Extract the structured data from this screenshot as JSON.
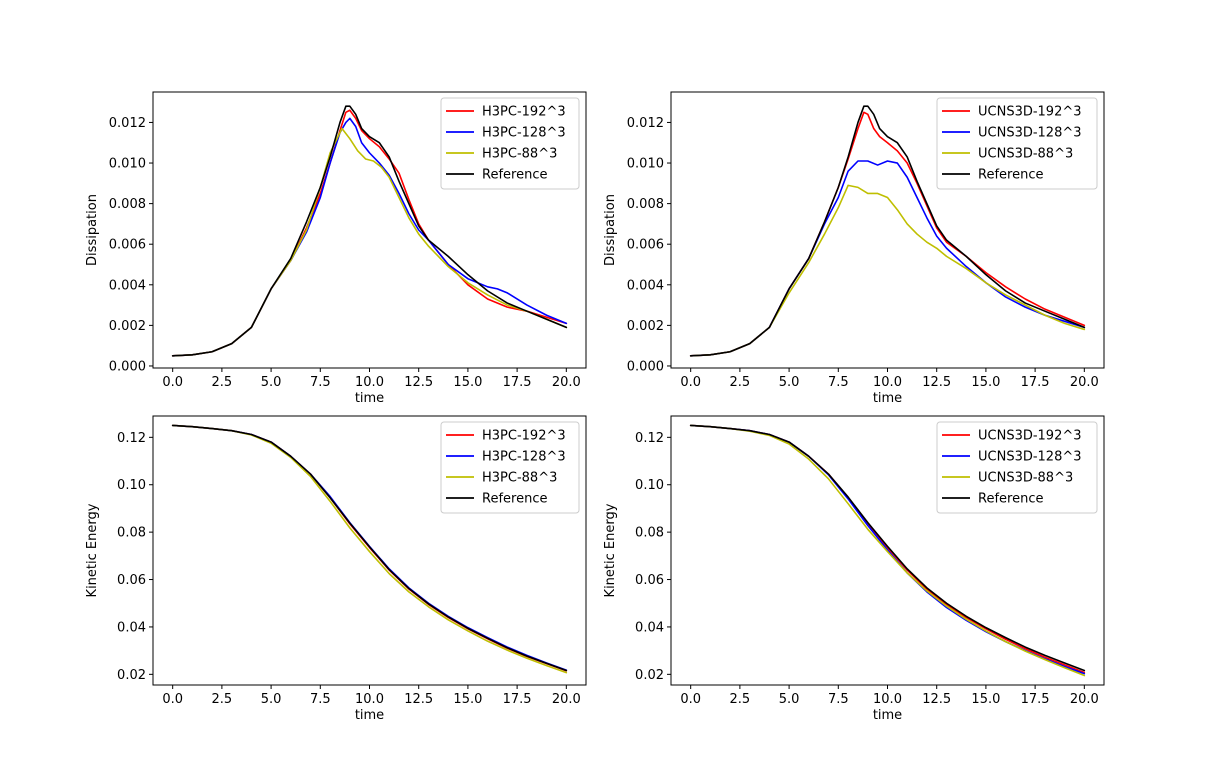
{
  "chart_data": [
    {
      "type": "line",
      "title": "",
      "xlabel": "time",
      "ylabel": "Dissipation",
      "xlim": [
        -1.0,
        21.0
      ],
      "ylim": [
        -0.0001,
        0.0135
      ],
      "xticks": [
        0.0,
        2.5,
        5.0,
        7.5,
        10.0,
        12.5,
        15.0,
        17.5,
        20.0
      ],
      "xtick_labels": [
        "0.0",
        "2.5",
        "5.0",
        "7.5",
        "10.0",
        "12.5",
        "15.0",
        "17.5",
        "20.0"
      ],
      "yticks": [
        0.0,
        0.002,
        0.004,
        0.006,
        0.008,
        0.01,
        0.012
      ],
      "ytick_labels": [
        "0.000",
        "0.002",
        "0.004",
        "0.006",
        "0.008",
        "0.010",
        "0.012"
      ],
      "legend_position": "top-right",
      "series": [
        {
          "name": "H3PC-192^3",
          "color": "#ff0000",
          "x": [
            0,
            1,
            2,
            3,
            4,
            5,
            6,
            6.8,
            7.5,
            8,
            8.5,
            8.8,
            9,
            9.3,
            9.6,
            10,
            10.5,
            11,
            11.5,
            12,
            12.5,
            13,
            13.5,
            14,
            15,
            16,
            17,
            18,
            19,
            20
          ],
          "y": [
            0.0005,
            0.00055,
            0.0007,
            0.0011,
            0.0019,
            0.0038,
            0.0052,
            0.0068,
            0.0085,
            0.01,
            0.0116,
            0.0125,
            0.0126,
            0.0122,
            0.0116,
            0.0112,
            0.0108,
            0.0102,
            0.0095,
            0.0082,
            0.007,
            0.0062,
            0.0056,
            0.005,
            0.004,
            0.0033,
            0.0029,
            0.0027,
            0.0024,
            0.0021
          ]
        },
        {
          "name": "H3PC-128^3",
          "color": "#0000ff",
          "x": [
            0,
            1,
            2,
            3,
            4,
            5,
            6,
            6.8,
            7.5,
            8,
            8.5,
            8.8,
            9,
            9.3,
            9.6,
            10,
            10.5,
            11,
            11.5,
            12,
            12.5,
            13,
            13.5,
            14,
            15,
            16,
            16.5,
            17,
            18,
            19,
            20
          ],
          "y": [
            0.0005,
            0.00055,
            0.0007,
            0.0011,
            0.0019,
            0.0038,
            0.0052,
            0.0066,
            0.0083,
            0.01,
            0.0115,
            0.012,
            0.0122,
            0.0118,
            0.011,
            0.0105,
            0.01,
            0.0094,
            0.0085,
            0.0075,
            0.0067,
            0.0062,
            0.0056,
            0.005,
            0.0043,
            0.0039,
            0.0038,
            0.0036,
            0.003,
            0.0025,
            0.0021
          ]
        },
        {
          "name": "H3PC-88^3",
          "color": "#bfbf00",
          "x": [
            0,
            1,
            2,
            3,
            4,
            5,
            6,
            6.8,
            7.5,
            8,
            8.6,
            9,
            9.4,
            9.8,
            10.2,
            10.6,
            11,
            11.5,
            12,
            12.5,
            13,
            14,
            15,
            16,
            17,
            18,
            19,
            20
          ],
          "y": [
            0.0005,
            0.00055,
            0.0007,
            0.0011,
            0.0019,
            0.0038,
            0.0052,
            0.0067,
            0.0088,
            0.0105,
            0.0117,
            0.0112,
            0.0106,
            0.0102,
            0.0101,
            0.0098,
            0.0093,
            0.0083,
            0.0073,
            0.0065,
            0.0059,
            0.0049,
            0.0041,
            0.0035,
            0.003,
            0.0027,
            0.0023,
            0.0019
          ]
        },
        {
          "name": "Reference",
          "color": "#000000",
          "x": [
            0,
            1,
            2,
            3,
            4,
            5,
            6,
            6.8,
            7.5,
            8,
            8.5,
            8.8,
            9,
            9.3,
            9.6,
            10,
            10.5,
            11,
            11.5,
            12,
            12.5,
            13,
            14,
            15,
            16,
            17,
            18,
            19,
            20
          ],
          "y": [
            0.0005,
            0.00055,
            0.0007,
            0.0011,
            0.0019,
            0.0038,
            0.0053,
            0.0071,
            0.0088,
            0.0103,
            0.012,
            0.0128,
            0.0128,
            0.0124,
            0.0117,
            0.0113,
            0.011,
            0.0103,
            0.0091,
            0.008,
            0.0069,
            0.0062,
            0.0054,
            0.0045,
            0.0037,
            0.0031,
            0.0027,
            0.0023,
            0.0019
          ]
        }
      ]
    },
    {
      "type": "line",
      "title": "",
      "xlabel": "time",
      "ylabel": "Dissipation",
      "xlim": [
        -1.0,
        21.0
      ],
      "ylim": [
        -0.0001,
        0.0135
      ],
      "xticks": [
        0.0,
        2.5,
        5.0,
        7.5,
        10.0,
        12.5,
        15.0,
        17.5,
        20.0
      ],
      "xtick_labels": [
        "0.0",
        "2.5",
        "5.0",
        "7.5",
        "10.0",
        "12.5",
        "15.0",
        "17.5",
        "20.0"
      ],
      "yticks": [
        0.0,
        0.002,
        0.004,
        0.006,
        0.008,
        0.01,
        0.012
      ],
      "ytick_labels": [
        "0.000",
        "0.002",
        "0.004",
        "0.006",
        "0.008",
        "0.010",
        "0.012"
      ],
      "legend_position": "top-right",
      "series": [
        {
          "name": "UCNS3D-192^3",
          "color": "#ff0000",
          "x": [
            0,
            1,
            2,
            3,
            4,
            5,
            6,
            6.8,
            7.5,
            8,
            8.5,
            8.8,
            9,
            9.3,
            9.6,
            10,
            10.5,
            11,
            11.5,
            12,
            12.5,
            13,
            14,
            15,
            16,
            17,
            18,
            19,
            20
          ],
          "y": [
            0.0005,
            0.00055,
            0.0007,
            0.0011,
            0.0019,
            0.0038,
            0.0053,
            0.0071,
            0.0088,
            0.0102,
            0.0117,
            0.0125,
            0.0124,
            0.0117,
            0.0113,
            0.011,
            0.0106,
            0.01,
            0.009,
            0.0079,
            0.0068,
            0.0061,
            0.0054,
            0.0046,
            0.0039,
            0.0033,
            0.0028,
            0.0024,
            0.002
          ]
        },
        {
          "name": "UCNS3D-128^3",
          "color": "#0000ff",
          "x": [
            0,
            1,
            2,
            3,
            4,
            5,
            6,
            6.8,
            7.5,
            8,
            8.5,
            9,
            9.5,
            10,
            10.5,
            11,
            11.5,
            12,
            12.5,
            13,
            14,
            15,
            16,
            17,
            18,
            19,
            20
          ],
          "y": [
            0.0005,
            0.00055,
            0.0007,
            0.0011,
            0.0019,
            0.0038,
            0.0053,
            0.007,
            0.0083,
            0.0096,
            0.0101,
            0.0101,
            0.0099,
            0.0101,
            0.01,
            0.0093,
            0.0083,
            0.0073,
            0.0064,
            0.0058,
            0.0049,
            0.0041,
            0.0034,
            0.0029,
            0.0025,
            0.0022,
            0.0019
          ]
        },
        {
          "name": "UCNS3D-88^3",
          "color": "#bfbf00",
          "x": [
            0,
            1,
            2,
            3,
            4,
            5,
            6,
            6.8,
            7.5,
            8,
            8.5,
            9,
            9.5,
            10,
            10.5,
            11,
            11.5,
            12,
            12.5,
            13,
            14,
            15,
            16,
            17,
            18,
            19,
            20
          ],
          "y": [
            0.0005,
            0.00055,
            0.0007,
            0.0011,
            0.0019,
            0.0036,
            0.0051,
            0.0065,
            0.0078,
            0.0089,
            0.0088,
            0.0085,
            0.0085,
            0.0083,
            0.0077,
            0.007,
            0.0065,
            0.0061,
            0.0058,
            0.0054,
            0.0048,
            0.0041,
            0.0035,
            0.003,
            0.0025,
            0.0021,
            0.0018
          ]
        },
        {
          "name": "Reference",
          "color": "#000000",
          "x": [
            0,
            1,
            2,
            3,
            4,
            5,
            6,
            6.8,
            7.5,
            8,
            8.5,
            8.8,
            9,
            9.3,
            9.6,
            10,
            10.5,
            11,
            11.5,
            12,
            12.5,
            13,
            14,
            15,
            16,
            17,
            18,
            19,
            20
          ],
          "y": [
            0.0005,
            0.00055,
            0.0007,
            0.0011,
            0.0019,
            0.0038,
            0.0053,
            0.0071,
            0.0088,
            0.0103,
            0.012,
            0.0128,
            0.0128,
            0.0124,
            0.0117,
            0.0113,
            0.011,
            0.0103,
            0.0091,
            0.008,
            0.0069,
            0.0062,
            0.0054,
            0.0045,
            0.0037,
            0.0031,
            0.0027,
            0.0023,
            0.0019
          ]
        }
      ]
    },
    {
      "type": "line",
      "title": "",
      "xlabel": "time",
      "ylabel": "Kinetic Energy",
      "xlim": [
        -1.0,
        21.0
      ],
      "ylim": [
        0.0155,
        0.129
      ],
      "xticks": [
        0.0,
        2.5,
        5.0,
        7.5,
        10.0,
        12.5,
        15.0,
        17.5,
        20.0
      ],
      "xtick_labels": [
        "0.0",
        "2.5",
        "5.0",
        "7.5",
        "10.0",
        "12.5",
        "15.0",
        "17.5",
        "20.0"
      ],
      "yticks": [
        0.02,
        0.04,
        0.06,
        0.08,
        0.1,
        0.12
      ],
      "ytick_labels": [
        "0.02",
        "0.04",
        "0.06",
        "0.08",
        "0.10",
        "0.12"
      ],
      "legend_position": "top-right",
      "series": [
        {
          "name": "H3PC-192^3",
          "color": "#ff0000",
          "x": [
            0,
            1,
            2,
            3,
            4,
            5,
            6,
            7,
            8,
            9,
            10,
            11,
            12,
            13,
            14,
            15,
            16,
            17,
            18,
            19,
            20
          ],
          "y": [
            0.125,
            0.1245,
            0.1237,
            0.1228,
            0.1212,
            0.118,
            0.112,
            0.1045,
            0.0945,
            0.0835,
            0.0735,
            0.064,
            0.056,
            0.0495,
            0.044,
            0.0392,
            0.035,
            0.031,
            0.0275,
            0.0245,
            0.0215
          ]
        },
        {
          "name": "H3PC-128^3",
          "color": "#0000ff",
          "x": [
            0,
            1,
            2,
            3,
            4,
            5,
            6,
            7,
            8,
            9,
            10,
            11,
            12,
            13,
            14,
            15,
            16,
            17,
            18,
            19,
            20
          ],
          "y": [
            0.125,
            0.1245,
            0.1237,
            0.1228,
            0.1212,
            0.118,
            0.112,
            0.1045,
            0.095,
            0.084,
            0.074,
            0.0645,
            0.0565,
            0.05,
            0.0445,
            0.0397,
            0.0355,
            0.0315,
            0.028,
            0.0248,
            0.0218
          ]
        },
        {
          "name": "H3PC-88^3",
          "color": "#bfbf00",
          "x": [
            0,
            1,
            2,
            3,
            4,
            5,
            6,
            7,
            8,
            9,
            10,
            11,
            12,
            13,
            14,
            15,
            16,
            17,
            18,
            19,
            20
          ],
          "y": [
            0.125,
            0.1245,
            0.1237,
            0.1228,
            0.121,
            0.1175,
            0.1115,
            0.1035,
            0.093,
            0.0818,
            0.0718,
            0.0625,
            0.0548,
            0.0485,
            0.043,
            0.0383,
            0.034,
            0.0302,
            0.0268,
            0.0237,
            0.0207
          ]
        },
        {
          "name": "Reference",
          "color": "#000000",
          "x": [
            0,
            1,
            2,
            3,
            4,
            5,
            6,
            7,
            8,
            9,
            10,
            11,
            12,
            13,
            14,
            15,
            16,
            17,
            18,
            19,
            20
          ],
          "y": [
            0.125,
            0.1245,
            0.1237,
            0.1228,
            0.1212,
            0.118,
            0.112,
            0.1045,
            0.0945,
            0.0838,
            0.0738,
            0.0642,
            0.0562,
            0.0497,
            0.0442,
            0.0394,
            0.0352,
            0.0312,
            0.0277,
            0.0246,
            0.0216
          ]
        }
      ]
    },
    {
      "type": "line",
      "title": "",
      "xlabel": "time",
      "ylabel": "Kinetic Energy",
      "xlim": [
        -1.0,
        21.0
      ],
      "ylim": [
        0.0155,
        0.129
      ],
      "xticks": [
        0.0,
        2.5,
        5.0,
        7.5,
        10.0,
        12.5,
        15.0,
        17.5,
        20.0
      ],
      "xtick_labels": [
        "0.0",
        "2.5",
        "5.0",
        "7.5",
        "10.0",
        "12.5",
        "15.0",
        "17.5",
        "20.0"
      ],
      "yticks": [
        0.02,
        0.04,
        0.06,
        0.08,
        0.1,
        0.12
      ],
      "ytick_labels": [
        "0.02",
        "0.04",
        "0.06",
        "0.08",
        "0.10",
        "0.12"
      ],
      "legend_position": "top-right",
      "series": [
        {
          "name": "UCNS3D-192^3",
          "color": "#ff0000",
          "x": [
            0,
            1,
            2,
            3,
            4,
            5,
            6,
            7,
            8,
            9,
            10,
            11,
            12,
            13,
            14,
            15,
            16,
            17,
            18,
            19,
            20
          ],
          "y": [
            0.125,
            0.1245,
            0.1237,
            0.1228,
            0.1212,
            0.118,
            0.112,
            0.1045,
            0.0945,
            0.0835,
            0.0735,
            0.064,
            0.056,
            0.0495,
            0.044,
            0.0392,
            0.0348,
            0.0308,
            0.0272,
            0.024,
            0.0208
          ]
        },
        {
          "name": "UCNS3D-128^3",
          "color": "#0000ff",
          "x": [
            0,
            1,
            2,
            3,
            4,
            5,
            6,
            7,
            8,
            9,
            10,
            11,
            12,
            13,
            14,
            15,
            16,
            17,
            18,
            19,
            20
          ],
          "y": [
            0.125,
            0.1245,
            0.1237,
            0.1228,
            0.1212,
            0.118,
            0.112,
            0.1042,
            0.094,
            0.0828,
            0.0725,
            0.0628,
            0.0548,
            0.0482,
            0.0428,
            0.038,
            0.0338,
            0.03,
            0.0265,
            0.0233,
            0.0203
          ]
        },
        {
          "name": "UCNS3D-88^3",
          "color": "#bfbf00",
          "x": [
            0,
            1,
            2,
            3,
            4,
            5,
            6,
            7,
            8,
            9,
            10,
            11,
            12,
            13,
            14,
            15,
            16,
            17,
            18,
            19,
            20
          ],
          "y": [
            0.125,
            0.1245,
            0.1237,
            0.1226,
            0.1208,
            0.1172,
            0.1108,
            0.1025,
            0.092,
            0.0812,
            0.0718,
            0.0628,
            0.0552,
            0.0488,
            0.0432,
            0.0383,
            0.0338,
            0.0298,
            0.0262,
            0.0228,
            0.0195
          ]
        },
        {
          "name": "Reference",
          "color": "#000000",
          "x": [
            0,
            1,
            2,
            3,
            4,
            5,
            6,
            7,
            8,
            9,
            10,
            11,
            12,
            13,
            14,
            15,
            16,
            17,
            18,
            19,
            20
          ],
          "y": [
            0.125,
            0.1245,
            0.1237,
            0.1228,
            0.1212,
            0.118,
            0.112,
            0.1045,
            0.0948,
            0.084,
            0.074,
            0.0645,
            0.0565,
            0.05,
            0.0445,
            0.0397,
            0.0355,
            0.0315,
            0.028,
            0.0248,
            0.0216
          ]
        }
      ]
    }
  ]
}
